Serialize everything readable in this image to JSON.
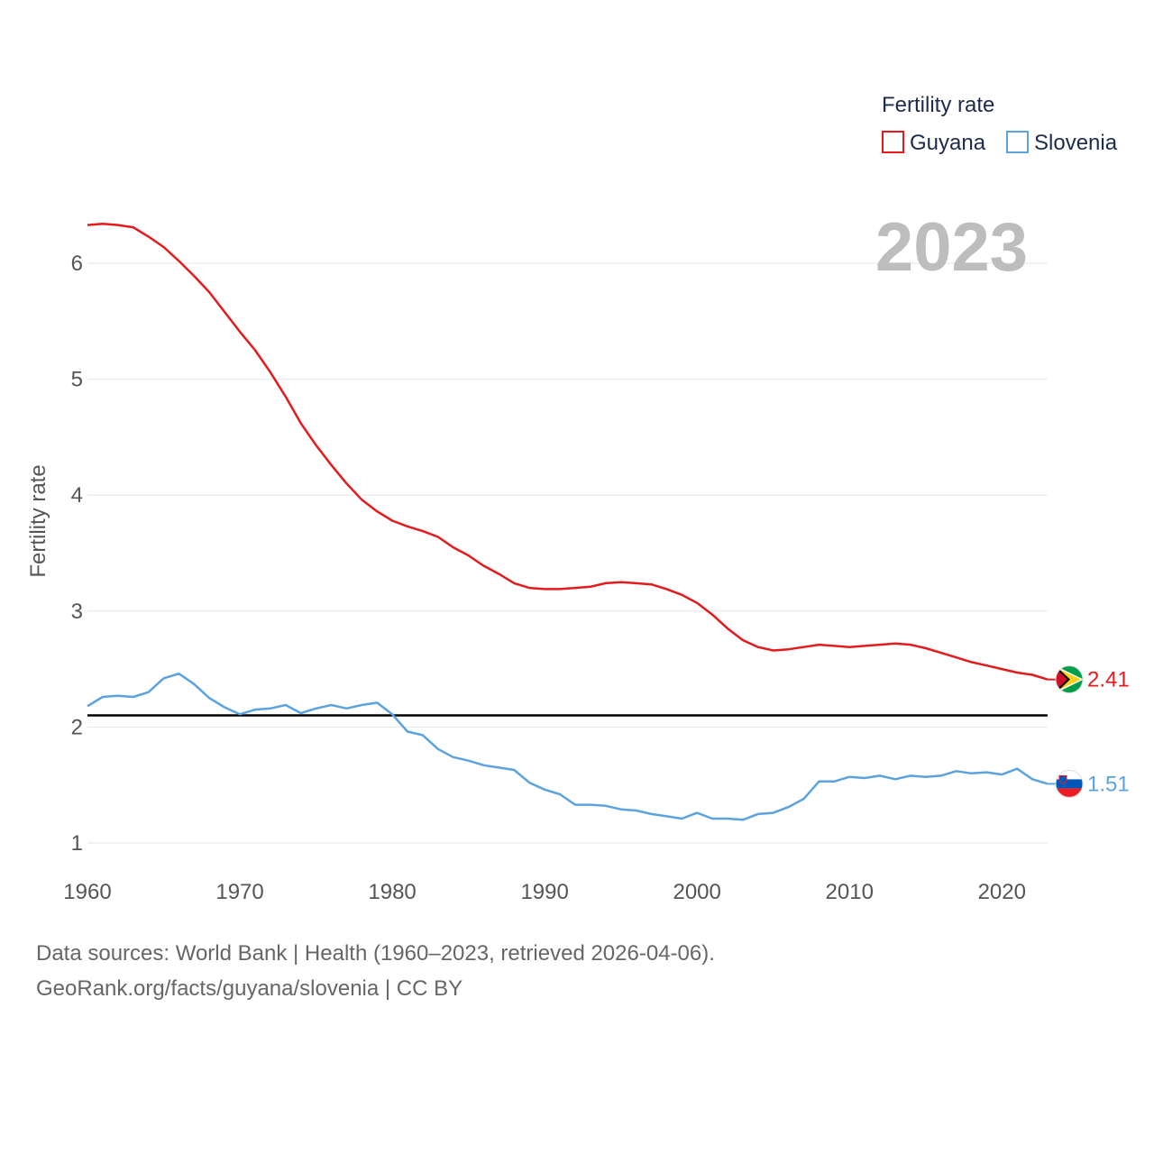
{
  "chart_data": {
    "type": "line",
    "ylabel": "Fertility rate",
    "xlabel": "",
    "xlim": [
      1960,
      2023
    ],
    "ylim": [
      1,
      6.5
    ],
    "x_ticks": [
      1960,
      1970,
      1980,
      1990,
      2000,
      2010,
      2020
    ],
    "y_ticks": [
      1,
      2,
      3,
      4,
      5,
      6
    ],
    "legend": {
      "title": "Fertility rate",
      "position": "top-right"
    },
    "year_badge": "2023",
    "reference_line": {
      "value": 2.1,
      "color": "#000000"
    },
    "x": [
      1960,
      1961,
      1962,
      1963,
      1964,
      1965,
      1966,
      1967,
      1968,
      1969,
      1970,
      1971,
      1972,
      1973,
      1974,
      1975,
      1976,
      1977,
      1978,
      1979,
      1980,
      1981,
      1982,
      1983,
      1984,
      1985,
      1986,
      1987,
      1988,
      1989,
      1990,
      1991,
      1992,
      1993,
      1994,
      1995,
      1996,
      1997,
      1998,
      1999,
      2000,
      2001,
      2002,
      2003,
      2004,
      2005,
      2006,
      2007,
      2008,
      2009,
      2010,
      2011,
      2012,
      2013,
      2014,
      2015,
      2016,
      2017,
      2018,
      2019,
      2020,
      2021,
      2022,
      2023
    ],
    "series": [
      {
        "name": "Guyana",
        "color": "#e41a1c",
        "end_label": "2.41",
        "flag": "guyana",
        "values": [
          6.33,
          6.34,
          6.33,
          6.31,
          6.23,
          6.14,
          6.02,
          5.89,
          5.75,
          5.58,
          5.41,
          5.25,
          5.06,
          4.85,
          4.62,
          4.43,
          4.26,
          4.1,
          3.96,
          3.86,
          3.78,
          3.73,
          3.69,
          3.64,
          3.55,
          3.48,
          3.39,
          3.32,
          3.24,
          3.2,
          3.19,
          3.19,
          3.2,
          3.21,
          3.24,
          3.25,
          3.24,
          3.23,
          3.19,
          3.14,
          3.07,
          2.97,
          2.85,
          2.75,
          2.69,
          2.66,
          2.67,
          2.69,
          2.71,
          2.7,
          2.69,
          2.7,
          2.71,
          2.72,
          2.71,
          2.68,
          2.64,
          2.6,
          2.56,
          2.53,
          2.5,
          2.47,
          2.45,
          2.41
        ]
      },
      {
        "name": "Slovenia",
        "color": "#5ba3e0",
        "end_label": "1.51",
        "flag": "slovenia",
        "values": [
          2.18,
          2.26,
          2.27,
          2.26,
          2.3,
          2.42,
          2.46,
          2.37,
          2.25,
          2.17,
          2.11,
          2.15,
          2.16,
          2.19,
          2.12,
          2.16,
          2.19,
          2.16,
          2.19,
          2.21,
          2.11,
          1.96,
          1.93,
          1.81,
          1.74,
          1.71,
          1.67,
          1.65,
          1.63,
          1.52,
          1.46,
          1.42,
          1.33,
          1.33,
          1.32,
          1.29,
          1.28,
          1.25,
          1.23,
          1.21,
          1.26,
          1.21,
          1.21,
          1.2,
          1.25,
          1.26,
          1.31,
          1.38,
          1.53,
          1.53,
          1.57,
          1.56,
          1.58,
          1.55,
          1.58,
          1.57,
          1.58,
          1.62,
          1.6,
          1.61,
          1.59,
          1.64,
          1.55,
          1.51
        ]
      }
    ]
  },
  "footer": {
    "source": "Data sources: World Bank | Health (1960–2023, retrieved 2026-04-06).",
    "credit": "GeoRank.org/facts/guyana/slovenia | CC BY"
  }
}
